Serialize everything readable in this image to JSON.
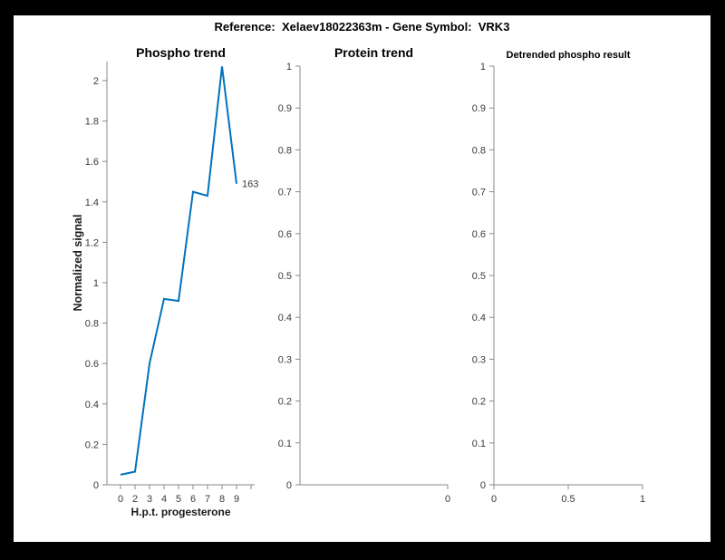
{
  "window": {
    "outer_background": "#000000",
    "figure_background": "#ffffff"
  },
  "header": {
    "title": "Reference:  Xelaev18022363m - Gene Symbol:  VRK3"
  },
  "colors": {
    "line": "#0072BD",
    "spine": "#888888",
    "tick_label": "#3a3a3a",
    "title": "#000000"
  },
  "chart_data": [
    {
      "type": "line",
      "title": "Phospho trend",
      "xlabel": "H.p.t. progesterone",
      "ylabel": "Normalized signal",
      "x_tick_labels": [
        "0",
        "2",
        "3",
        "4",
        "5",
        "6",
        "7",
        "8",
        "9"
      ],
      "x_values": [
        0,
        2,
        3,
        4,
        5,
        6,
        7,
        8,
        9
      ],
      "values": [
        0.05,
        0.065,
        0.6,
        0.92,
        0.91,
        1.45,
        1.43,
        2.07,
        1.49
      ],
      "y_tick_labels": [
        "0",
        "0.2",
        "0.4",
        "0.6",
        "0.8",
        "1",
        "1.2",
        "1.4",
        "1.6",
        "1.8",
        "2"
      ],
      "ylim": [
        0,
        2.09
      ],
      "grid": false,
      "legend": null,
      "line_color": "#0072BD",
      "annotation": "163"
    },
    {
      "type": "line",
      "title": "Protein trend",
      "xlabel": "",
      "ylabel": "",
      "x_tick_labels": [
        "0"
      ],
      "x_values": [],
      "values": [],
      "y_tick_labels": [
        "0",
        "0.1",
        "0.2",
        "0.3",
        "0.4",
        "0.5",
        "0.6",
        "0.7",
        "0.8",
        "0.9",
        "1"
      ],
      "ylim": [
        0,
        1
      ],
      "grid": false,
      "legend": null
    },
    {
      "type": "line",
      "title": "Detrended phospho result",
      "xlabel": "",
      "ylabel": "",
      "x_tick_labels": [
        "0",
        "0.5",
        "1"
      ],
      "x_values": [],
      "values": [],
      "y_tick_labels": [
        "0",
        "0.1",
        "0.2",
        "0.3",
        "0.4",
        "0.5",
        "0.6",
        "0.7",
        "0.8",
        "0.9",
        "1"
      ],
      "ylim": [
        0,
        1
      ],
      "xlim": [
        0,
        1
      ],
      "grid": false,
      "legend": null
    }
  ]
}
